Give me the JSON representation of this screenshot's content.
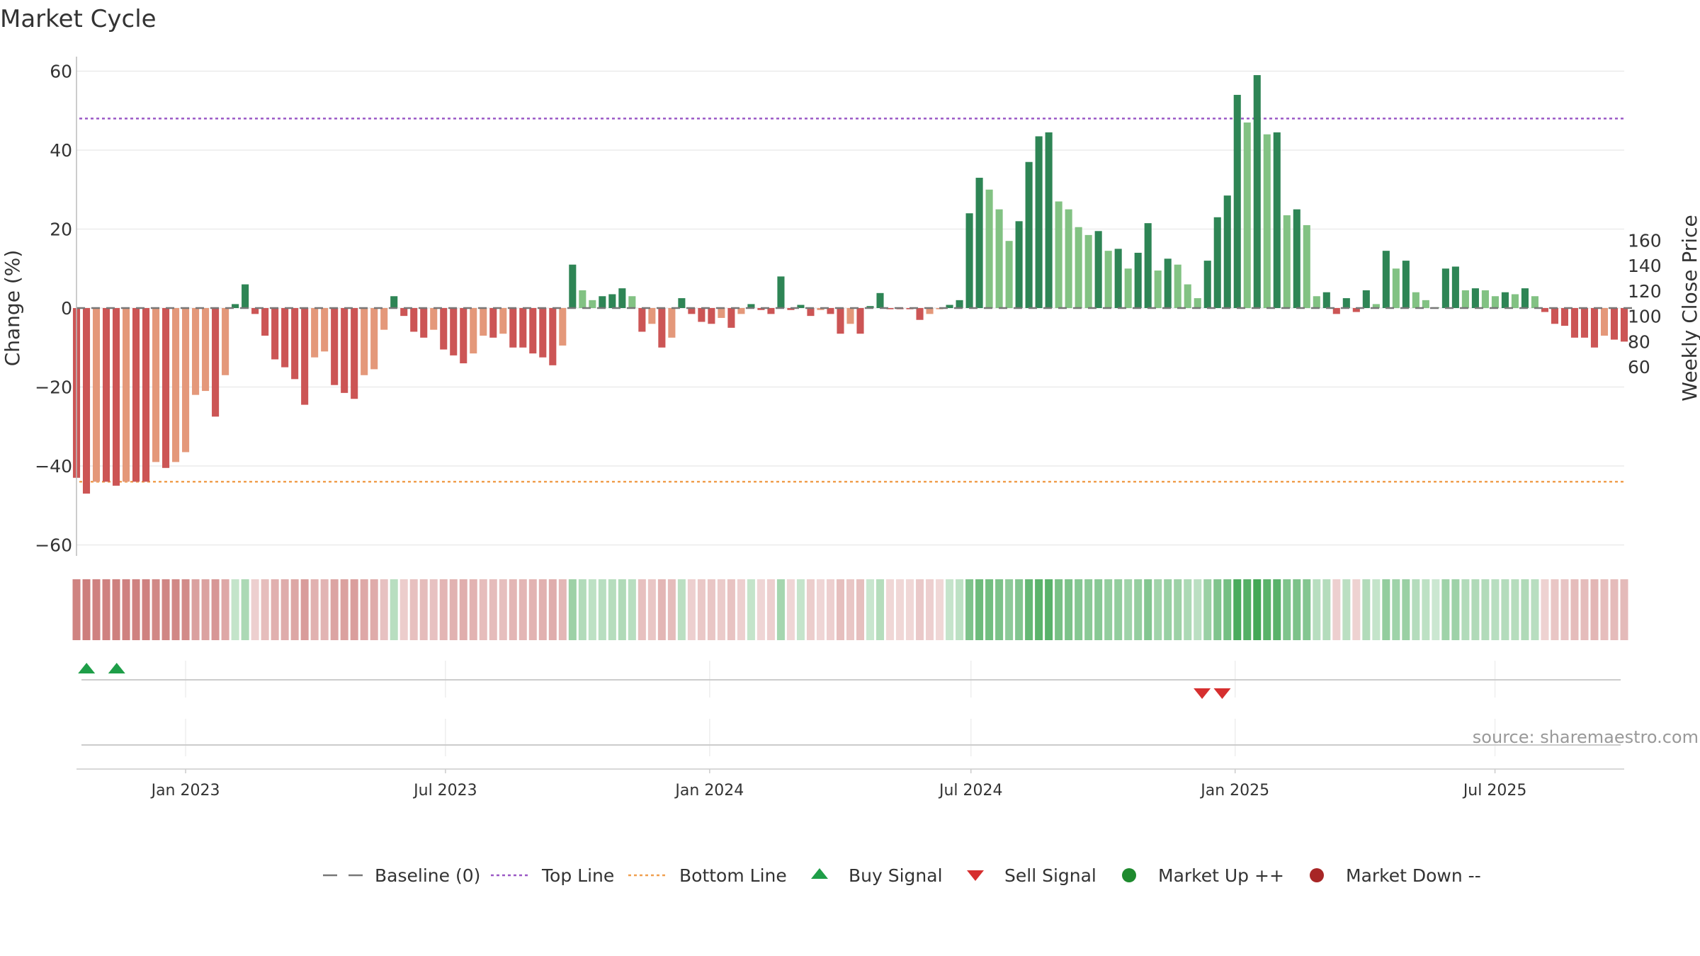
{
  "chart_data": {
    "type": "bar",
    "title": "Market Cycle",
    "ylabel": "Change (%)",
    "y2label": "Weekly Close Price",
    "ylim": [
      -63,
      63
    ],
    "y2lim": [
      50,
      170
    ],
    "yticks": [
      60,
      40,
      20,
      0,
      -20,
      -40,
      -60
    ],
    "ytick_labels": [
      "60",
      "40",
      "20",
      "0",
      "−20",
      "−40",
      "−60"
    ],
    "y2ticks": [
      160,
      140,
      120,
      100,
      80,
      60
    ],
    "top_line": 48,
    "bottom_line": -44,
    "x_start": "2022-10-17",
    "x_end": "2025-09-29",
    "date_ticks": [
      {
        "date": "2023-01-01",
        "label": "Jan 2023"
      },
      {
        "date": "2023-07-01",
        "label": "Jul 2023"
      },
      {
        "date": "2024-01-01",
        "label": "Jan 2024"
      },
      {
        "date": "2024-07-01",
        "label": "Jul 2024"
      },
      {
        "date": "2025-01-01",
        "label": "Jan 2025"
      },
      {
        "date": "2025-07-01",
        "label": "Jul 2025"
      }
    ],
    "values": [
      -43,
      -47,
      -44,
      -44,
      -45,
      -44,
      -44,
      -44,
      -39,
      -40.5,
      -39,
      -36.5,
      -22,
      -21,
      -27.5,
      -17,
      1,
      6,
      -1.5,
      -7,
      -13,
      -15,
      -18,
      -24.5,
      -12.5,
      -11,
      -19.5,
      -21.5,
      -23,
      -17,
      -15.5,
      -5.5,
      3,
      -2,
      -6,
      -7.5,
      -5.5,
      -10.5,
      -12,
      -14,
      -11.5,
      -7,
      -7.5,
      -6.5,
      -10,
      -10,
      -11.5,
      -12.5,
      -14.5,
      -9.5,
      11,
      4.5,
      2,
      3,
      3.5,
      5,
      3,
      -6,
      -4,
      -10,
      -7.5,
      2.5,
      -1.5,
      -3.5,
      -4,
      -2.5,
      -5,
      -1.5,
      1,
      -0.5,
      -1.5,
      8,
      -0.5,
      0.8,
      -2,
      -0.5,
      -1.5,
      -6.5,
      -4,
      -6.5,
      0.5,
      3.8,
      -0.3,
      -0.3,
      -0.3,
      -3,
      -1.5,
      -0.3,
      0.8,
      2,
      24,
      33,
      30,
      25,
      17,
      22,
      37,
      43.5,
      44.5,
      27,
      25,
      20.5,
      18.5,
      19.5,
      14.5,
      15,
      10,
      14,
      21.5,
      9.5,
      12.5,
      11,
      6,
      2.5,
      12,
      23,
      28.5,
      54,
      47,
      59,
      44,
      44.5,
      23.5,
      25,
      21,
      3,
      4,
      -1.5,
      2.5,
      -1,
      4.5,
      1,
      14.5,
      10,
      12,
      4,
      2,
      0.2,
      10,
      10.5,
      4.5,
      5,
      4.5,
      3,
      4,
      3.5,
      5,
      3,
      -1,
      -4,
      -4.5,
      -7.5,
      -7.5,
      -10,
      -7,
      -8,
      -8.5
    ],
    "signals": [
      {
        "date": "2022-10-24",
        "type": "buy"
      },
      {
        "date": "2022-11-14",
        "type": "buy"
      },
      {
        "date": "2024-12-09",
        "type": "sell"
      },
      {
        "date": "2024-12-23",
        "type": "sell"
      }
    ],
    "legend": [
      {
        "key": "baseline",
        "label": "Baseline (0)"
      },
      {
        "key": "top",
        "label": "Top Line"
      },
      {
        "key": "bottom",
        "label": "Bottom Line"
      },
      {
        "key": "buy",
        "label": "Buy Signal"
      },
      {
        "key": "sell",
        "label": "Sell Signal"
      },
      {
        "key": "up",
        "label": "Market Up ++"
      },
      {
        "key": "down",
        "label": "Market Down --"
      }
    ],
    "legend_position": "bottom",
    "annotation": "source: sharemaestro.com",
    "colors": {
      "strong_up": "#2e8555",
      "mild_up": "#82c283",
      "strong_down": "#cc5555",
      "mild_down": "#e4987a",
      "top_line": "#9b59c6",
      "bottom_line": "#f0a050",
      "buy": "#1e9e48",
      "sell": "#d62f2f",
      "up_dot": "#1e8a2e",
      "down_dot": "#a82626",
      "baseline": "#777777"
    }
  }
}
